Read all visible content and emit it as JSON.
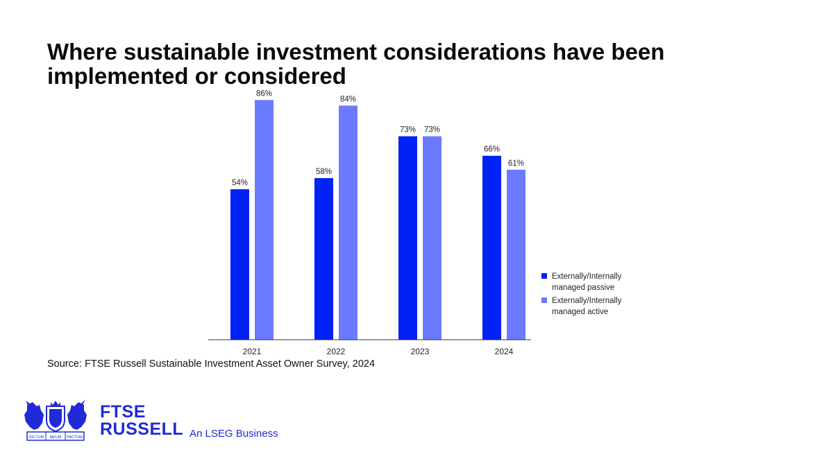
{
  "title": "Where sustainable investment considerations have been implemented or considered",
  "source": "Source: FTSE Russell Sustainable Investment Asset Owner Survey, 2024",
  "logo": {
    "line1": "FTSE",
    "line2": "RUSSELL",
    "tagline": "An LSEG Business",
    "crest_icon": "lion-unicorn-crest-icon",
    "crest_text": [
      "DICTUM",
      "MEUM",
      "PACTUM"
    ],
    "color": "#1f2bd6"
  },
  "chart_data": {
    "type": "bar",
    "categories": [
      "2021",
      "2022",
      "2023",
      "2024"
    ],
    "series": [
      {
        "name": "Externally/Internally managed passive",
        "values": [
          54,
          58,
          73,
          66
        ],
        "labels": [
          "54%",
          "58%",
          "73%",
          "66%"
        ],
        "color": "#0022f5"
      },
      {
        "name": "Externally/Internally managed active",
        "values": [
          86,
          84,
          73,
          61
        ],
        "labels": [
          "86%",
          "84%",
          "73%",
          "61%"
        ],
        "color": "#6b7bff"
      }
    ],
    "ylim": [
      0,
      100
    ],
    "grid": false,
    "legend": "right"
  }
}
